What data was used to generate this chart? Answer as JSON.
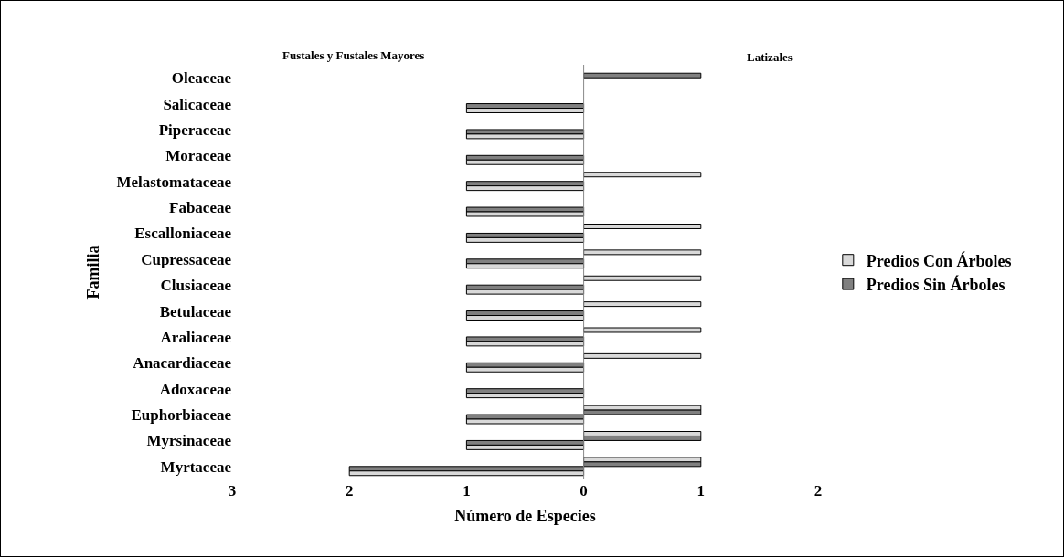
{
  "chart_data": {
    "type": "bar",
    "orientation": "horizontal",
    "xlabel": "Número de Especies",
    "ylabel": "Familia",
    "annotations": [
      "Fustales y Fustales Mayores",
      "Latizales"
    ],
    "categories": [
      "Oleaceae",
      "Salicaceae",
      "Piperaceae",
      "Moraceae",
      "Melastomataceae",
      "Fabaceae",
      "Escalloniaceae",
      "Cupressaceae",
      "Clusiaceae",
      "Betulaceae",
      "Araliaceae",
      "Anacardiaceae",
      "Adoxaceae",
      "Euphorbiaceae",
      "Myrsinaceae",
      "Myrtaceae"
    ],
    "series": [
      {
        "color": "#d9d9d9",
        "values": [
          null,
          null,
          null,
          null,
          1,
          null,
          1,
          1,
          1,
          1,
          1,
          1,
          null,
          1,
          1,
          1
        ]
      },
      {
        "color": "#808080",
        "values": [
          1,
          null,
          null,
          null,
          null,
          null,
          null,
          null,
          null,
          null,
          null,
          null,
          null,
          1,
          1,
          1
        ]
      },
      {
        "name": "Predios Sin Árboles",
        "color": "#808080",
        "values": [
          null,
          -1,
          -1,
          -1,
          -1,
          -1,
          -1,
          -1,
          -1,
          -1,
          -1,
          -1,
          -1,
          -1,
          -1,
          -2
        ]
      },
      {
        "name": "Predios Con Árboles",
        "color": "#d9d9d9",
        "values": [
          null,
          -1,
          -1,
          -1,
          -1,
          -1,
          -1,
          -1,
          -1,
          -1,
          -1,
          -1,
          -1,
          -1,
          -1,
          -2
        ]
      }
    ],
    "xlim": [
      -3,
      2
    ],
    "xticks": [
      {
        "value": -3,
        "label": "3"
      },
      {
        "value": -2,
        "label": "2"
      },
      {
        "value": -1,
        "label": "1"
      },
      0,
      1,
      2
    ],
    "ref_lines": [
      {
        "axis": "x",
        "value": 0,
        "color": "#888888"
      }
    ],
    "grid": false,
    "legend": "right"
  }
}
